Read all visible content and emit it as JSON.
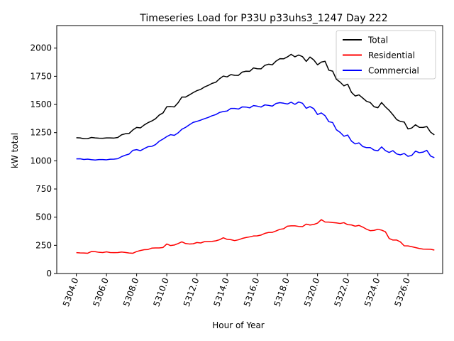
{
  "chart_data": {
    "type": "line",
    "title": "Timeseries Load for P33U p33uhs3_1247  Day 222",
    "xlabel": "Hour of Year",
    "ylabel": "kW total",
    "xlim": [
      5302.7,
      5328.3
    ],
    "ylim": [
      0,
      2200
    ],
    "x_ticks": [
      5304.0,
      5306.0,
      5308.0,
      5310.0,
      5312.0,
      5314.0,
      5316.0,
      5318.0,
      5320.0,
      5322.0,
      5324.0,
      5326.0
    ],
    "x_tick_labels": [
      "5304.0",
      "5306.0",
      "5308.0",
      "5310.0",
      "5312.0",
      "5314.0",
      "5316.0",
      "5318.0",
      "5320.0",
      "5322.0",
      "5324.0",
      "5326.0"
    ],
    "y_ticks": [
      0,
      250,
      500,
      750,
      1000,
      1250,
      1500,
      1750,
      2000
    ],
    "y_tick_labels": [
      "0",
      "250",
      "500",
      "750",
      "1000",
      "1250",
      "1500",
      "1750",
      "2000"
    ],
    "grid": false,
    "legend_position": "top-right",
    "x_start": 5304.0,
    "x_step": 0.25,
    "series": [
      {
        "name": "Total",
        "color": "#000000",
        "values": [
          1205,
          1203,
          1196,
          1197,
          1207,
          1203,
          1201,
          1200,
          1203,
          1203,
          1202,
          1207,
          1231,
          1240,
          1243,
          1274,
          1296,
          1292,
          1318,
          1338,
          1353,
          1373,
          1406,
          1425,
          1480,
          1481,
          1478,
          1515,
          1566,
          1566,
          1585,
          1605,
          1623,
          1634,
          1655,
          1669,
          1687,
          1697,
          1728,
          1752,
          1745,
          1765,
          1759,
          1758,
          1787,
          1795,
          1794,
          1824,
          1817,
          1816,
          1847,
          1857,
          1852,
          1885,
          1906,
          1905,
          1922,
          1945,
          1923,
          1939,
          1925,
          1882,
          1921,
          1895,
          1852,
          1876,
          1883,
          1804,
          1796,
          1724,
          1698,
          1665,
          1680,
          1608,
          1575,
          1585,
          1557,
          1528,
          1517,
          1480,
          1471,
          1517,
          1479,
          1448,
          1409,
          1366,
          1349,
          1344,
          1283,
          1291,
          1320,
          1297,
          1296,
          1304,
          1254,
          1230
        ]
      },
      {
        "name": "Residential",
        "color": "#ff0000",
        "values": [
          185,
          183,
          182,
          180,
          195,
          194,
          188,
          186,
          192,
          186,
          185,
          186,
          191,
          187,
          182,
          180,
          195,
          204,
          211,
          213,
          225,
          227,
          227,
          231,
          262,
          248,
          253,
          266,
          281,
          266,
          262,
          264,
          275,
          271,
          283,
          284,
          285,
          290,
          300,
          317,
          303,
          300,
          292,
          299,
          311,
          319,
          325,
          333,
          334,
          341,
          356,
          364,
          365,
          378,
          392,
          397,
          420,
          423,
          423,
          418,
          416,
          438,
          430,
          435,
          447,
          478,
          457,
          456,
          452,
          449,
          444,
          451,
          433,
          431,
          420,
          427,
          412,
          393,
          380,
          383,
          392,
          385,
          371,
          311,
          297,
          297,
          280,
          246,
          245,
          238,
          230,
          222,
          217,
          216,
          215,
          208
        ]
      },
      {
        "name": "Commercial",
        "color": "#0000ff",
        "values": [
          1017,
          1018,
          1012,
          1015,
          1010,
          1007,
          1011,
          1011,
          1009,
          1014,
          1015,
          1019,
          1037,
          1050,
          1060,
          1093,
          1099,
          1090,
          1108,
          1125,
          1128,
          1144,
          1174,
          1193,
          1215,
          1232,
          1226,
          1248,
          1280,
          1297,
          1320,
          1341,
          1350,
          1361,
          1374,
          1385,
          1400,
          1410,
          1429,
          1437,
          1442,
          1465,
          1465,
          1459,
          1478,
          1477,
          1470,
          1490,
          1485,
          1477,
          1496,
          1492,
          1485,
          1509,
          1516,
          1511,
          1504,
          1520,
          1501,
          1522,
          1511,
          1466,
          1481,
          1463,
          1411,
          1425,
          1400,
          1347,
          1340,
          1276,
          1252,
          1218,
          1229,
          1175,
          1150,
          1159,
          1127,
          1117,
          1117,
          1095,
          1089,
          1123,
          1091,
          1074,
          1090,
          1061,
          1053,
          1065,
          1040,
          1048,
          1086,
          1072,
          1077,
          1093,
          1042,
          1028
        ]
      }
    ]
  }
}
